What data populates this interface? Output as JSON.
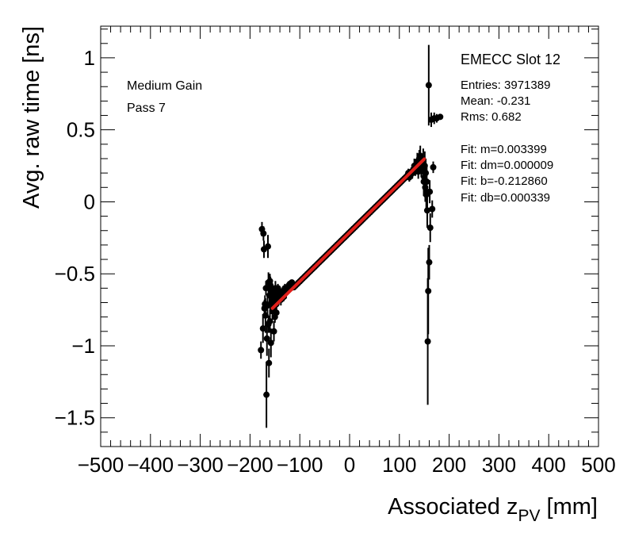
{
  "chart_data": {
    "type": "scatter",
    "title": "",
    "xlabel": "Associated z",
    "xlabel_sub": "PV",
    "xlabel_unit": " [mm]",
    "ylabel": "Avg. raw time [ns]",
    "xlim": [
      -500,
      500
    ],
    "ylim": [
      -1.7,
      1.22
    ],
    "x_ticks": [
      -500,
      -400,
      -300,
      -200,
      -100,
      0,
      100,
      200,
      300,
      400,
      500
    ],
    "x_tick_labels": [
      "−500",
      "−400",
      "−300",
      "−200",
      "−100",
      "0",
      "100",
      "200",
      "300",
      "400",
      "500"
    ],
    "y_ticks": [
      -1.5,
      -1,
      -0.5,
      0,
      0.5,
      1
    ],
    "y_tick_labels": [
      "−1.5",
      "−1",
      "−0.5",
      "0",
      "0.5",
      "1"
    ],
    "legend_left": [
      "Medium Gain",
      "Pass 7"
    ],
    "stats_title": "EMECC Slot 12",
    "stats": [
      "Entries: 3971389",
      "Mean: -0.231",
      "Rms: 0.682"
    ],
    "fit_text": [
      "Fit: m=0.003399",
      "Fit: dm=0.000009",
      "Fit: b=-0.212860",
      "Fit: db=0.000339"
    ],
    "fit": {
      "m": 0.003399,
      "b": -0.21286,
      "x_range": [
        -155,
        150
      ],
      "color": "#e0201b"
    },
    "marker_color": "#000000",
    "series": [
      {
        "name": "data",
        "points": [
          [
            -178,
            -1.03,
            0.06
          ],
          [
            -176,
            -0.19,
            0.05
          ],
          [
            -174,
            -0.88,
            0.1
          ],
          [
            -173,
            -0.22,
            0.05
          ],
          [
            -172,
            -0.33,
            0.06
          ],
          [
            -171,
            -0.74,
            0.06
          ],
          [
            -170,
            -0.71,
            0.06
          ],
          [
            -169,
            -0.79,
            0.12
          ],
          [
            -168,
            -0.6,
            0.05
          ],
          [
            -167,
            -1.34,
            0.23
          ],
          [
            -166,
            -0.95,
            0.12
          ],
          [
            -165,
            -0.72,
            0.08
          ],
          [
            -164,
            -0.31,
            0.08
          ],
          [
            -163,
            -0.56,
            0.07
          ],
          [
            -162,
            -1.12,
            0.1
          ],
          [
            -161,
            -0.65,
            0.09
          ],
          [
            -160,
            -0.83,
            0.08
          ],
          [
            -159,
            -0.58,
            0.06
          ],
          [
            -158,
            -0.98,
            0.1
          ],
          [
            -157,
            -0.7,
            0.08
          ],
          [
            -156,
            -0.62,
            0.06
          ],
          [
            -155,
            -0.75,
            0.07
          ],
          [
            -154,
            -0.68,
            0.06
          ],
          [
            -153,
            -0.73,
            0.05
          ],
          [
            -152,
            -0.9,
            0.07
          ],
          [
            -151,
            -0.64,
            0.05
          ],
          [
            -150,
            -0.72,
            0.06
          ],
          [
            -149,
            -0.6,
            0.05
          ],
          [
            -148,
            -0.66,
            0.05
          ],
          [
            -147,
            -0.71,
            0.05
          ],
          [
            -146,
            -0.62,
            0.04
          ],
          [
            -145,
            -0.68,
            0.05
          ],
          [
            -144,
            -0.64,
            0.04
          ],
          [
            -142,
            -0.67,
            0.04
          ],
          [
            -140,
            -0.65,
            0.03
          ],
          [
            -138,
            -0.68,
            0.04
          ],
          [
            -136,
            -0.64,
            0.03
          ],
          [
            -134,
            -0.62,
            0.03
          ],
          [
            -132,
            -0.66,
            0.03
          ],
          [
            -130,
            -0.6,
            0.03
          ],
          [
            -128,
            -0.63,
            0.03
          ],
          [
            -126,
            -0.61,
            0.02
          ],
          [
            -124,
            -0.6,
            0.02
          ],
          [
            -122,
            -0.58,
            0.02
          ],
          [
            -120,
            -0.57,
            0.02
          ],
          [
            -118,
            -0.6,
            0.02
          ],
          [
            -116,
            -0.56,
            0.02
          ],
          [
            -114,
            -0.58,
            0.02
          ],
          [
            -150,
            -0.8,
            0.04
          ],
          [
            -147,
            -0.77,
            0.04
          ],
          [
            -144,
            -0.6,
            0.03
          ],
          [
            -160,
            -0.55,
            0.05
          ],
          [
            -163,
            -0.85,
            0.06
          ],
          [
            118,
            0.2,
            0.03
          ],
          [
            120,
            0.17,
            0.03
          ],
          [
            122,
            0.18,
            0.03
          ],
          [
            124,
            0.21,
            0.03
          ],
          [
            126,
            0.2,
            0.04
          ],
          [
            128,
            0.22,
            0.04
          ],
          [
            130,
            0.25,
            0.05
          ],
          [
            132,
            0.22,
            0.04
          ],
          [
            134,
            0.24,
            0.05
          ],
          [
            136,
            0.28,
            0.06
          ],
          [
            138,
            0.21,
            0.05
          ],
          [
            140,
            0.3,
            0.06
          ],
          [
            142,
            0.32,
            0.07
          ],
          [
            144,
            0.23,
            0.06
          ],
          [
            146,
            0.26,
            0.07
          ],
          [
            148,
            0.29,
            0.08
          ],
          [
            149,
            0.14,
            0.1
          ],
          [
            150,
            0.17,
            0.08
          ],
          [
            151,
            0.25,
            0.1
          ],
          [
            152,
            0.1,
            0.1
          ],
          [
            153,
            0.2,
            0.1
          ],
          [
            154,
            0.05,
            0.1
          ],
          [
            155,
            0.14,
            0.12
          ],
          [
            156,
            -0.06,
            0.12
          ],
          [
            157,
            -0.97,
            0.44
          ],
          [
            158,
            -0.62,
            0.3
          ],
          [
            159,
            0.81,
            0.28
          ],
          [
            160,
            -0.42,
            0.12
          ],
          [
            161,
            0.07,
            0.08
          ],
          [
            162,
            -0.18,
            0.1
          ],
          [
            164,
            0.57,
            0.05
          ],
          [
            166,
            -0.05,
            0.06
          ],
          [
            168,
            0.24,
            0.04
          ],
          [
            170,
            0.58,
            0.04
          ],
          [
            175,
            0.58,
            0.03
          ],
          [
            182,
            0.59,
            0.02
          ]
        ]
      }
    ]
  }
}
